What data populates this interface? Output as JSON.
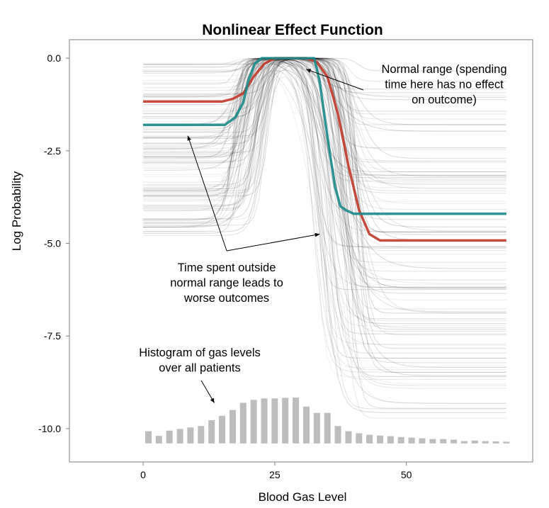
{
  "chart_data": {
    "type": "line",
    "title": "Nonlinear Effect Function",
    "xlabel": "Blood Gas Level",
    "ylabel": "Log Probability",
    "xlim": [
      -14,
      74
    ],
    "ylim": [
      -10.9,
      0.5
    ],
    "x_ticks": [
      0,
      25,
      50
    ],
    "x_tick_labels": [
      "0",
      "25",
      "50"
    ],
    "y_ticks": [
      0,
      -2.5,
      -5,
      -7.5,
      -10
    ],
    "y_tick_labels": [
      "0.0",
      "-2.5",
      "-5.0",
      "-7.5",
      "-10.0"
    ],
    "grid": false,
    "background_curves": {
      "description_count": 110,
      "x_range": [
        0,
        69
      ],
      "color": "#000000"
    },
    "series": [
      {
        "color": "#c0392b",
        "x": [
          0,
          15,
          17,
          19,
          21,
          23,
          25,
          27,
          29,
          31,
          33,
          35,
          37,
          39,
          41,
          43,
          45,
          69
        ],
        "y": [
          -1.17,
          -1.17,
          -1.1,
          -0.95,
          -0.5,
          -0.15,
          0,
          0,
          0,
          0,
          -0.1,
          -0.5,
          -1.5,
          -2.9,
          -4.1,
          -4.75,
          -4.92,
          -4.92
        ]
      },
      {
        "color": "#1a8a8a",
        "x": [
          0,
          15.5,
          17.5,
          19,
          20,
          21.2,
          22.5,
          27,
          29,
          32.5,
          33.5,
          34.5,
          35.5,
          36.5,
          37.5,
          38.5,
          40,
          69
        ],
        "y": [
          -1.8,
          -1.8,
          -1.6,
          -1.2,
          -0.6,
          -0.15,
          0,
          0,
          0,
          0,
          -0.6,
          -1.6,
          -2.6,
          -3.5,
          -4.0,
          -4.1,
          -4.2,
          -4.2
        ]
      }
    ],
    "histogram": {
      "x": [
        1,
        3,
        5,
        7,
        9,
        11,
        13,
        15,
        17,
        19,
        21,
        23,
        25,
        27,
        29,
        31,
        33,
        35,
        37,
        39,
        41,
        43,
        45,
        47,
        49,
        51,
        53,
        55,
        57,
        59,
        61,
        63,
        65,
        67,
        69
      ],
      "counts": [
        0.42,
        0.26,
        0.44,
        0.5,
        0.55,
        0.6,
        0.8,
        0.95,
        1.15,
        1.4,
        1.5,
        1.55,
        1.55,
        1.57,
        1.58,
        1.27,
        1.05,
        1.05,
        0.6,
        0.42,
        0.35,
        0.3,
        0.27,
        0.25,
        0.22,
        0.2,
        0.18,
        0.15,
        0.15,
        0.13,
        0.08,
        0.1,
        0.08,
        0.07,
        0.06
      ]
    },
    "annotations": [
      {
        "lines": [
          "Normal range (spending",
          "time here has no effect",
          "on outcome)"
        ]
      },
      {
        "lines": [
          "Time spent outside",
          "normal range leads to",
          "worse outcomes"
        ]
      },
      {
        "lines": [
          "Histogram of gas levels",
          "over all patients"
        ]
      }
    ]
  }
}
